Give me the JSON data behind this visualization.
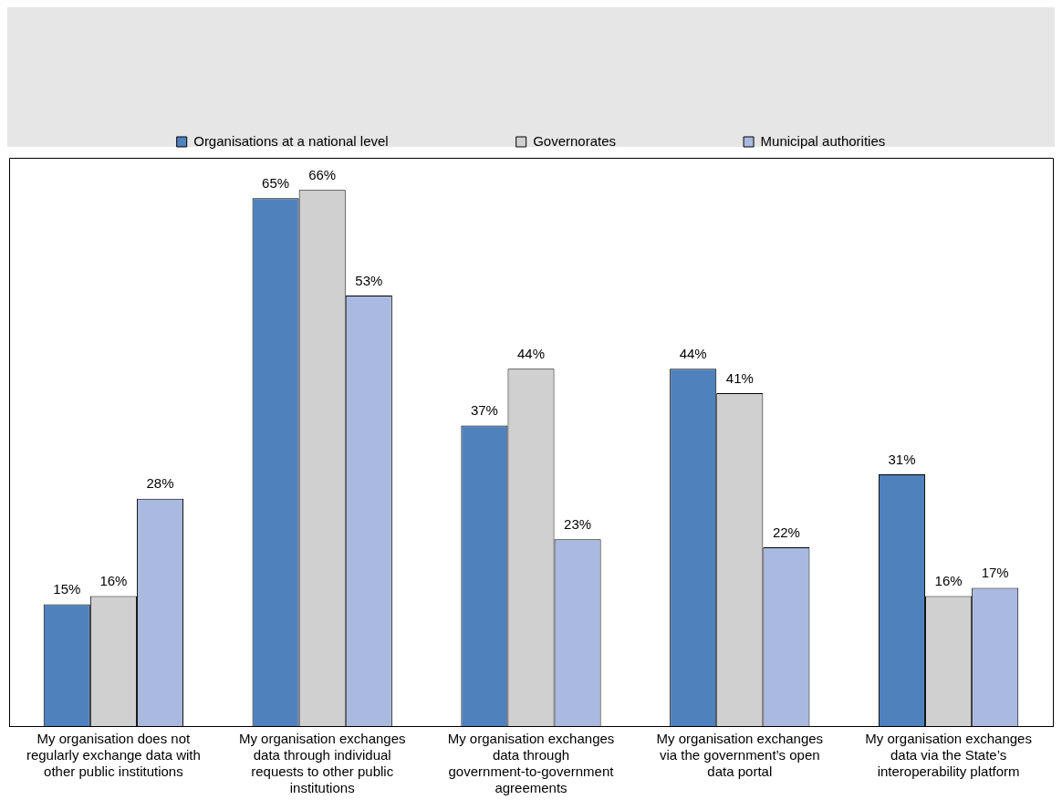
{
  "chart_data": {
    "type": "bar",
    "categories": [
      "My organisation does not regularly exchange data with other public institutions",
      "My organisation exchanges data through individual requests to other public institutions",
      "My organisation exchanges data through government-to-government agreements",
      "My organisation exchanges via the government’s open data portal",
      "My organisation exchanges data via the State’s interoperability platform"
    ],
    "series": [
      {
        "name": "Organisations at a national level",
        "color": "#4f81bd",
        "values": [
          15,
          65,
          37,
          44,
          31
        ],
        "value_labels": [
          "15%",
          "65%",
          "37%",
          "44%",
          "31%"
        ]
      },
      {
        "name": "Governorates",
        "color": "#d0d0d0",
        "values": [
          16,
          66,
          44,
          41,
          16
        ],
        "value_labels": [
          "16%",
          "66%",
          "44%",
          "41%",
          "16%"
        ]
      },
      {
        "name": "Municipal authorities",
        "color": "#a9b9e0",
        "values": [
          28,
          53,
          23,
          22,
          17
        ],
        "value_labels": [
          "28%",
          "53%",
          "23%",
          "22%",
          "17%"
        ]
      }
    ],
    "legend": "top",
    "grid": false
  }
}
